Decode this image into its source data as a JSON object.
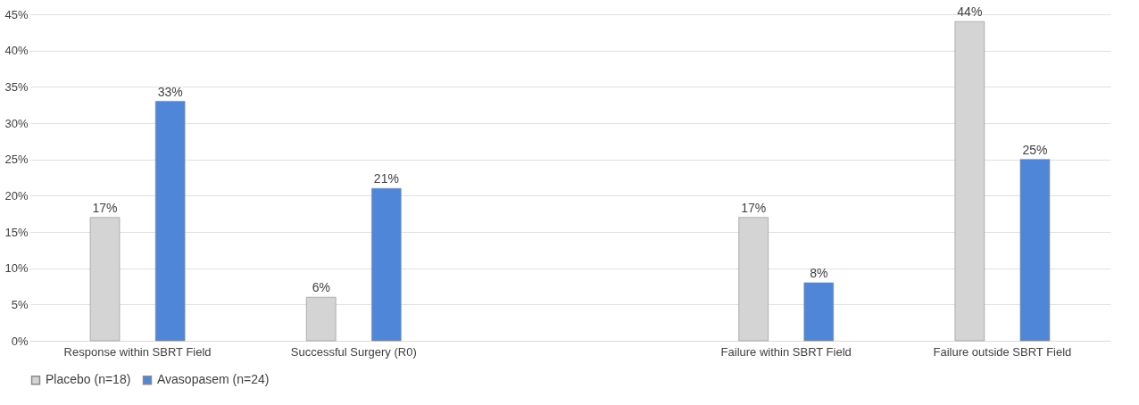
{
  "chart_data": {
    "type": "bar",
    "categories": [
      "Response within SBRT Field",
      "Successful Surgery (R0)",
      null,
      "Failure within SBRT Field",
      "Failure outside SBRT Field"
    ],
    "series": [
      {
        "name": "Placebo (n=18)",
        "color": "#d4d4d4",
        "values": [
          17,
          6,
          null,
          17,
          44
        ],
        "value_labels": [
          "17%",
          "6%",
          null,
          "17%",
          "44%"
        ]
      },
      {
        "name": "Avasopasem (n=24)",
        "color": "#4f86d8",
        "values": [
          33,
          21,
          null,
          8,
          25
        ],
        "value_labels": [
          "33%",
          "21%",
          null,
          "8%",
          "25%"
        ]
      }
    ],
    "ylim": [
      0,
      45
    ],
    "yticks": [
      {
        "value": 0,
        "label": "0%"
      },
      {
        "value": 5,
        "label": "5%"
      },
      {
        "value": 10,
        "label": "10%"
      },
      {
        "value": 15,
        "label": "15%"
      },
      {
        "value": 20,
        "label": "20%"
      },
      {
        "value": 25,
        "label": "25%"
      },
      {
        "value": 30,
        "label": "30%"
      },
      {
        "value": 35,
        "label": "35%"
      },
      {
        "value": 40,
        "label": "40%"
      },
      {
        "value": 45,
        "label": "45%"
      }
    ],
    "grid": "y",
    "legend": "bottom"
  }
}
